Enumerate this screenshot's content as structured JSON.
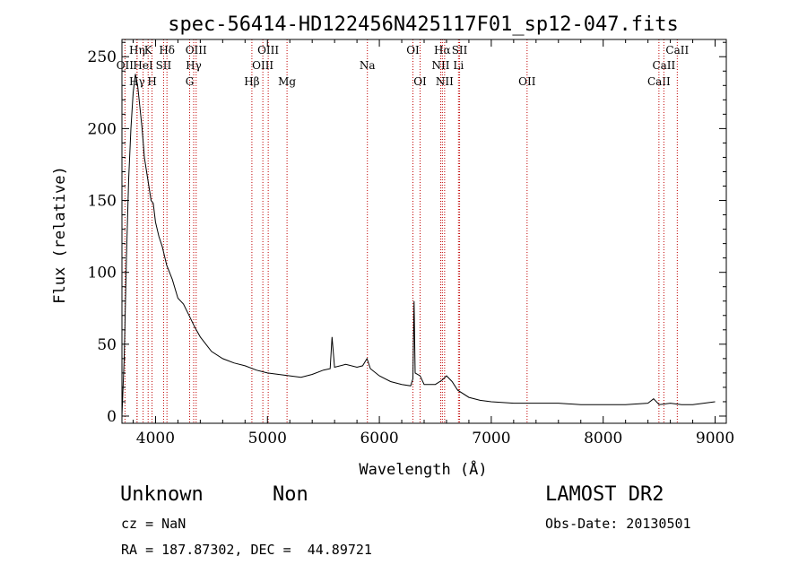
{
  "chart_data": {
    "type": "line",
    "title": "spec-56414-HD122456N425117F01_sp12-047.fits",
    "xlabel": "Wavelength (Å)",
    "ylabel": "Flux (relative)",
    "xlim": [
      3700,
      9100
    ],
    "ylim": [
      -5,
      262
    ],
    "xticks": [
      4000,
      5000,
      6000,
      7000,
      8000,
      9000
    ],
    "yticks": [
      0,
      50,
      100,
      150,
      200,
      250
    ],
    "grid": false,
    "series": [
      {
        "color": "#000000",
        "x": [
          3700,
          3720,
          3740,
          3760,
          3780,
          3800,
          3820,
          3840,
          3860,
          3880,
          3900,
          3920,
          3940,
          3960,
          3980,
          4000,
          4030,
          4060,
          4100,
          4150,
          4200,
          4250,
          4300,
          4350,
          4400,
          4450,
          4500,
          4600,
          4700,
          4800,
          4900,
          5000,
          5100,
          5200,
          5300,
          5400,
          5500,
          5560,
          5577,
          5600,
          5700,
          5800,
          5850,
          5890,
          5920,
          6000,
          6100,
          6200,
          6280,
          6300,
          6310,
          6320,
          6364,
          6400,
          6500,
          6560,
          6600,
          6650,
          6700,
          6800,
          6900,
          7000,
          7200,
          7400,
          7600,
          7800,
          8000,
          8200,
          8400,
          8450,
          8500,
          8600,
          8700,
          8800,
          8900,
          9000
        ],
        "y": [
          0,
          40,
          110,
          165,
          200,
          225,
          238,
          230,
          215,
          200,
          180,
          170,
          160,
          150,
          148,
          135,
          125,
          118,
          105,
          95,
          82,
          78,
          70,
          62,
          55,
          50,
          45,
          40,
          37,
          35,
          32,
          30,
          29,
          28,
          27,
          29,
          32,
          33,
          55,
          34,
          36,
          34,
          35,
          40,
          33,
          28,
          24,
          22,
          21,
          26,
          80,
          30,
          28,
          22,
          22,
          25,
          28,
          24,
          18,
          13,
          11,
          10,
          9,
          9,
          9,
          8,
          8,
          8,
          9,
          12,
          8,
          9,
          8,
          8,
          9,
          10
        ]
      }
    ],
    "spectral_lines": [
      {
        "name": "OII",
        "x": 3727,
        "row": 1
      },
      {
        "name": "Hη",
        "x": 3835,
        "row": 0
      },
      {
        "name": "Hγ",
        "x": 3835,
        "row": 2
      },
      {
        "name": "HeI",
        "x": 3889,
        "row": 1
      },
      {
        "name": "K",
        "x": 3934,
        "row": 0
      },
      {
        "name": "H",
        "x": 3969,
        "row": 2
      },
      {
        "name": "SII",
        "x": 4072,
        "row": 1
      },
      {
        "name": "Hδ",
        "x": 4102,
        "row": 0
      },
      {
        "name": "G",
        "x": 4305,
        "row": 2
      },
      {
        "name": "OIII",
        "x": 4363,
        "row": 0
      },
      {
        "name": "Hγ",
        "x": 4341,
        "row": 1
      },
      {
        "name": "Hβ",
        "x": 4861,
        "row": 2
      },
      {
        "name": "OIII",
        "x": 4959,
        "row": 1
      },
      {
        "name": "OIII",
        "x": 5007,
        "row": 0
      },
      {
        "name": "Mg",
        "x": 5175,
        "row": 2
      },
      {
        "name": "Na",
        "x": 5893,
        "row": 1
      },
      {
        "name": "OI",
        "x": 6300,
        "row": 0
      },
      {
        "name": "OI",
        "x": 6364,
        "row": 2
      },
      {
        "name": "NII",
        "x": 6548,
        "row": 1
      },
      {
        "name": "Hα",
        "x": 6563,
        "row": 0
      },
      {
        "name": "NII",
        "x": 6583,
        "row": 2
      },
      {
        "name": "SII",
        "x": 6717,
        "row": 0
      },
      {
        "name": "Li",
        "x": 6707,
        "row": 1
      },
      {
        "name": "OII",
        "x": 7320,
        "row": 2
      },
      {
        "name": "CaII",
        "x": 8498,
        "row": 2
      },
      {
        "name": "CaII",
        "x": 8542,
        "row": 1
      },
      {
        "name": "CaII",
        "x": 8662,
        "row": 0
      }
    ]
  },
  "info": {
    "object_class": "Unknown",
    "subclass": "Non",
    "survey": "LAMOST DR2",
    "redshift": "cz = NaN",
    "obs_date": "Obs-Date: 20130501",
    "coords": "RA = 187.87302, DEC =  44.89721"
  },
  "colors": {
    "spectral_line": "#c00000",
    "spectrum": "#000000"
  }
}
